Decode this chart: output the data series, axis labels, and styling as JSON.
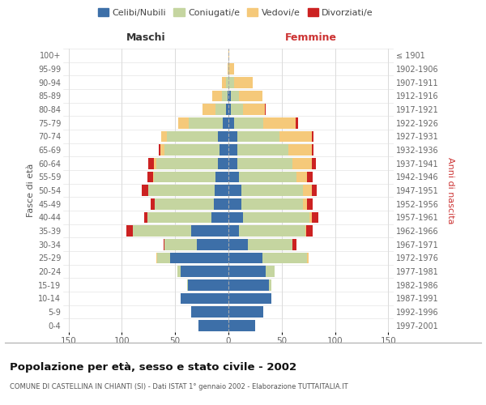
{
  "age_groups": [
    "0-4",
    "5-9",
    "10-14",
    "15-19",
    "20-24",
    "25-29",
    "30-34",
    "35-39",
    "40-44",
    "45-49",
    "50-54",
    "55-59",
    "60-64",
    "65-69",
    "70-74",
    "75-79",
    "80-84",
    "85-89",
    "90-94",
    "95-99",
    "100+"
  ],
  "birth_years": [
    "1997-2001",
    "1992-1996",
    "1987-1991",
    "1982-1986",
    "1977-1981",
    "1972-1976",
    "1967-1971",
    "1962-1966",
    "1957-1961",
    "1952-1956",
    "1947-1951",
    "1942-1946",
    "1937-1941",
    "1932-1936",
    "1927-1931",
    "1922-1926",
    "1917-1921",
    "1912-1916",
    "1907-1911",
    "1902-1906",
    "≤ 1901"
  ],
  "colors": {
    "celibi": "#3d6fa8",
    "coniugati": "#c5d5a0",
    "vedovi": "#f5c97a",
    "divorziati": "#cc2222"
  },
  "males": {
    "celibi": [
      28,
      35,
      45,
      38,
      45,
      55,
      30,
      35,
      16,
      14,
      13,
      12,
      10,
      8,
      10,
      5,
      2,
      1,
      0,
      0,
      0
    ],
    "coniugati": [
      0,
      0,
      0,
      1,
      3,
      12,
      30,
      55,
      60,
      55,
      62,
      58,
      58,
      52,
      48,
      32,
      10,
      5,
      2,
      0,
      0
    ],
    "vedovi": [
      0,
      0,
      0,
      0,
      0,
      1,
      0,
      0,
      0,
      0,
      0,
      1,
      2,
      4,
      5,
      10,
      12,
      9,
      4,
      1,
      0
    ],
    "divorziati": [
      0,
      0,
      0,
      0,
      0,
      0,
      1,
      6,
      3,
      4,
      6,
      5,
      5,
      1,
      0,
      0,
      0,
      0,
      0,
      0,
      0
    ]
  },
  "females": {
    "celibi": [
      25,
      33,
      40,
      38,
      35,
      32,
      18,
      10,
      14,
      12,
      12,
      10,
      8,
      8,
      8,
      5,
      2,
      2,
      0,
      0,
      0
    ],
    "coniugati": [
      0,
      0,
      0,
      2,
      8,
      42,
      42,
      62,
      62,
      58,
      58,
      54,
      52,
      48,
      40,
      28,
      12,
      8,
      5,
      1,
      0
    ],
    "vedovi": [
      0,
      0,
      0,
      0,
      0,
      1,
      0,
      1,
      2,
      4,
      8,
      10,
      18,
      22,
      30,
      30,
      20,
      22,
      18,
      4,
      1
    ],
    "divorziati": [
      0,
      0,
      0,
      0,
      0,
      0,
      4,
      6,
      6,
      5,
      5,
      5,
      4,
      2,
      2,
      2,
      1,
      0,
      0,
      0,
      0
    ]
  },
  "xlim": 155,
  "title": "Popolazione per età, sesso e stato civile - 2002",
  "subtitle": "COMUNE DI CASTELLINA IN CHIANTI (SI) - Dati ISTAT 1° gennaio 2002 - Elaborazione TUTTAITALIA.IT",
  "xlabel_left": "Maschi",
  "xlabel_right": "Femmine",
  "ylabel_left": "Fasce di età",
  "ylabel_right": "Anni di nascita",
  "legend_labels": [
    "Celibi/Nubili",
    "Coniugati/e",
    "Vedovi/e",
    "Divorziati/e"
  ]
}
